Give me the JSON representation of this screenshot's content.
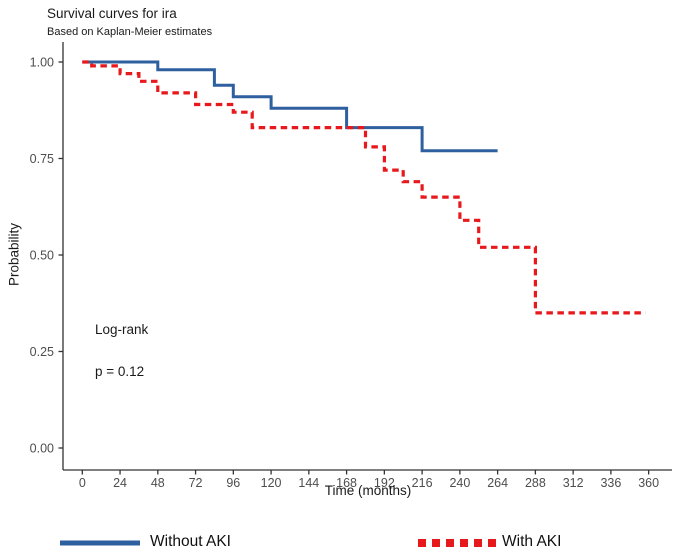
{
  "title": "Survival curves for ira",
  "subtitle": "Based on Kaplan-Meier estimates",
  "annotation": {
    "test_name": "Log-rank",
    "p_value": "p = 0.12"
  },
  "axes": {
    "x": {
      "label": "Time (months)",
      "tick_labels": [
        "0",
        "24",
        "48",
        "72",
        "96",
        "120",
        "144",
        "168",
        "192",
        "216",
        "240",
        "264",
        "288",
        "312",
        "336",
        "360"
      ],
      "tick_values": [
        0,
        24,
        48,
        72,
        96,
        120,
        144,
        168,
        192,
        216,
        240,
        264,
        288,
        312,
        336,
        360
      ]
    },
    "y": {
      "label": "Probability",
      "tick_labels": [
        "1.00",
        "0.75",
        "0.50",
        "0.25",
        "0.00"
      ],
      "tick_values": [
        1.0,
        0.75,
        0.5,
        0.25,
        0.0
      ]
    }
  },
  "legend": [
    {
      "label": "Without AKI",
      "color": "#2e5f9e",
      "pattern": "solid"
    },
    {
      "label": "With AKI",
      "color": "#e8191c",
      "pattern": "dashed"
    }
  ],
  "colors": {
    "axis": "#333333",
    "tick_text": "#4d4d4d",
    "text": "#1a1a1a",
    "background": "#ffffff"
  },
  "chart_data": {
    "type": "line",
    "subtype": "kaplan-meier-step",
    "title": "Survival curves for ira",
    "subtitle": "Based on Kaplan-Meier estimates",
    "xlabel": "Time (months)",
    "ylabel": "Probability",
    "xlim": [
      0,
      372
    ],
    "ylim": [
      0,
      1.0
    ],
    "grid": false,
    "legend_position": "bottom",
    "annotations": [
      "Log-rank",
      "p = 0.12"
    ],
    "series": [
      {
        "name": "Without AKI",
        "color": "#2e5f9e",
        "line_style": "solid",
        "end_time": 264,
        "steps": [
          [
            0,
            1.0
          ],
          [
            48,
            0.98
          ],
          [
            84,
            0.94
          ],
          [
            96,
            0.91
          ],
          [
            120,
            0.88
          ],
          [
            168,
            0.83
          ],
          [
            216,
            0.77
          ]
        ]
      },
      {
        "name": "With AKI",
        "color": "#e8191c",
        "line_style": "dashed",
        "end_time": 358,
        "steps": [
          [
            0,
            1.0
          ],
          [
            6,
            0.99
          ],
          [
            24,
            0.97
          ],
          [
            36,
            0.95
          ],
          [
            48,
            0.92
          ],
          [
            72,
            0.89
          ],
          [
            96,
            0.87
          ],
          [
            108,
            0.83
          ],
          [
            180,
            0.78
          ],
          [
            192,
            0.72
          ],
          [
            204,
            0.69
          ],
          [
            216,
            0.65
          ],
          [
            240,
            0.59
          ],
          [
            252,
            0.52
          ],
          [
            288,
            0.35
          ]
        ]
      }
    ]
  }
}
